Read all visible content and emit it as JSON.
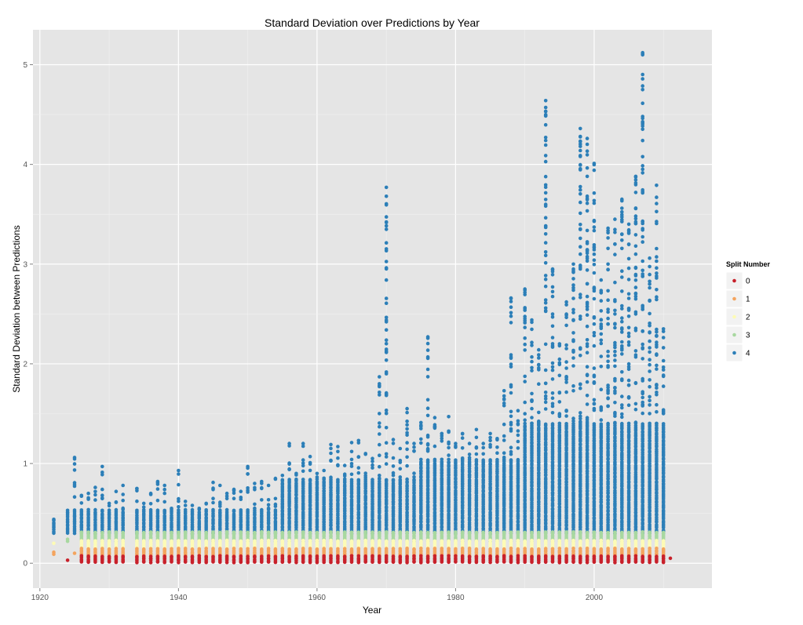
{
  "chart_data": {
    "type": "scatter",
    "title": "Standard Deviation over Predictions by Year",
    "xlabel": "Year",
    "ylabel": "Standard Deviation between Predictions",
    "xlim": [
      1919,
      2017
    ],
    "ylim": [
      -0.25,
      5.35
    ],
    "x_ticks": [
      1920,
      1940,
      1960,
      1980,
      2000
    ],
    "y_ticks": [
      0,
      1,
      2,
      3,
      4,
      5
    ],
    "grid": true,
    "legend": {
      "title": "Split Number",
      "position": "right",
      "entries": [
        "0",
        "1",
        "2",
        "3",
        "4"
      ]
    },
    "colors": {
      "0": "#c8202a",
      "1": "#f4a45e",
      "2": "#fdfbb6",
      "3": "#a8d8a0",
      "4": "#2c7fb8",
      "panel": "#e5e5e5",
      "grid": "#ffffff"
    },
    "series": [
      {
        "name": "0",
        "band": [
          0.01,
          0.07
        ],
        "extra_points": [
          [
            1924,
            0.03
          ],
          [
            2011,
            0.05
          ]
        ]
      },
      {
        "name": "1",
        "band": [
          0.07,
          0.15
        ],
        "extra_points": [
          [
            1922,
            0.11
          ],
          [
            1922,
            0.09
          ],
          [
            1925,
            0.1
          ]
        ]
      },
      {
        "name": "2",
        "band": [
          0.15,
          0.24
        ],
        "extra_points": [
          [
            1922,
            0.2
          ]
        ]
      },
      {
        "name": "3",
        "band": [
          0.22,
          0.32
        ],
        "extra_points": [
          [
            1924,
            0.24
          ],
          [
            1924,
            0.22
          ]
        ]
      },
      {
        "name": "4",
        "band_note": "dense column from ~0.3 up to per-year max",
        "year_max": [
          [
            1922,
            0.44
          ],
          [
            1924,
            0.53
          ],
          [
            1925,
            1.06
          ],
          [
            1926,
            0.68
          ],
          [
            1927,
            0.7
          ],
          [
            1928,
            0.76
          ],
          [
            1929,
            0.97
          ],
          [
            1930,
            0.6
          ],
          [
            1931,
            0.72
          ],
          [
            1932,
            0.78
          ],
          [
            1934,
            0.75
          ],
          [
            1935,
            0.6
          ],
          [
            1936,
            0.7
          ],
          [
            1937,
            0.82
          ],
          [
            1938,
            0.78
          ],
          [
            1939,
            0.55
          ],
          [
            1940,
            0.93
          ],
          [
            1941,
            0.62
          ],
          [
            1942,
            0.58
          ],
          [
            1943,
            0.55
          ],
          [
            1944,
            0.6
          ],
          [
            1945,
            0.81
          ],
          [
            1946,
            0.78
          ],
          [
            1947,
            0.7
          ],
          [
            1948,
            0.74
          ],
          [
            1949,
            0.72
          ],
          [
            1950,
            0.97
          ],
          [
            1951,
            0.8
          ],
          [
            1952,
            0.82
          ],
          [
            1953,
            0.78
          ],
          [
            1954,
            0.85
          ],
          [
            1955,
            0.88
          ],
          [
            1956,
            1.2
          ],
          [
            1957,
            0.9
          ],
          [
            1958,
            1.2
          ],
          [
            1959,
            1.07
          ],
          [
            1960,
            0.9
          ],
          [
            1961,
            0.93
          ],
          [
            1962,
            1.19
          ],
          [
            1963,
            1.17
          ],
          [
            1964,
            0.98
          ],
          [
            1965,
            1.21
          ],
          [
            1966,
            1.23
          ],
          [
            1967,
            1.1
          ],
          [
            1968,
            1.05
          ],
          [
            1969,
            1.87
          ],
          [
            1970,
            3.77
          ],
          [
            1971,
            1.24
          ],
          [
            1972,
            1.15
          ],
          [
            1973,
            1.55
          ],
          [
            1974,
            1.2
          ],
          [
            1975,
            1.41
          ],
          [
            1976,
            2.27
          ],
          [
            1977,
            1.46
          ],
          [
            1978,
            1.3
          ],
          [
            1979,
            1.47
          ],
          [
            1980,
            1.2
          ],
          [
            1981,
            1.3
          ],
          [
            1982,
            1.2
          ],
          [
            1983,
            1.34
          ],
          [
            1984,
            1.2
          ],
          [
            1985,
            1.3
          ],
          [
            1986,
            1.25
          ],
          [
            1987,
            1.73
          ],
          [
            1988,
            2.66
          ],
          [
            1989,
            1.53
          ],
          [
            1990,
            2.75
          ],
          [
            1991,
            2.44
          ],
          [
            1992,
            2.14
          ],
          [
            1993,
            4.64
          ],
          [
            1994,
            2.95
          ],
          [
            1995,
            2.2
          ],
          [
            1996,
            2.62
          ],
          [
            1997,
            3.0
          ],
          [
            1998,
            4.36
          ],
          [
            1999,
            4.26
          ],
          [
            2000,
            4.01
          ],
          [
            2001,
            2.84
          ],
          [
            2002,
            3.36
          ],
          [
            2003,
            3.45
          ],
          [
            2004,
            3.65
          ],
          [
            2005,
            3.4
          ],
          [
            2006,
            3.88
          ],
          [
            2007,
            5.12
          ],
          [
            2008,
            3.06
          ],
          [
            2009,
            3.79
          ],
          [
            2010,
            2.35
          ]
        ],
        "outliers": [
          [
            1998,
            4.08
          ],
          [
            1999,
            3.88
          ],
          [
            1999,
            3.66
          ],
          [
            1999,
            3.61
          ],
          [
            1998,
            3.51
          ],
          [
            2000,
            3.04
          ],
          [
            2002,
            3.0
          ],
          [
            2003,
            3.2
          ],
          [
            2004,
            3.3
          ],
          [
            2005,
            3.2
          ],
          [
            2006,
            3.1
          ],
          [
            2007,
            3.03
          ],
          [
            2007,
            2.9
          ],
          [
            1997,
            2.95
          ],
          [
            1998,
            3.1
          ],
          [
            1999,
            3.14
          ],
          [
            1998,
            2.45
          ],
          [
            2000,
            2.46
          ],
          [
            2001,
            2.44
          ],
          [
            2003,
            2.5
          ],
          [
            2009,
            3.03
          ],
          [
            2008,
            2.8
          ],
          [
            2009,
            2.67
          ],
          [
            2004,
            3.24
          ],
          [
            2005,
            2.55
          ],
          [
            2006,
            2.5
          ]
        ]
      }
    ]
  }
}
